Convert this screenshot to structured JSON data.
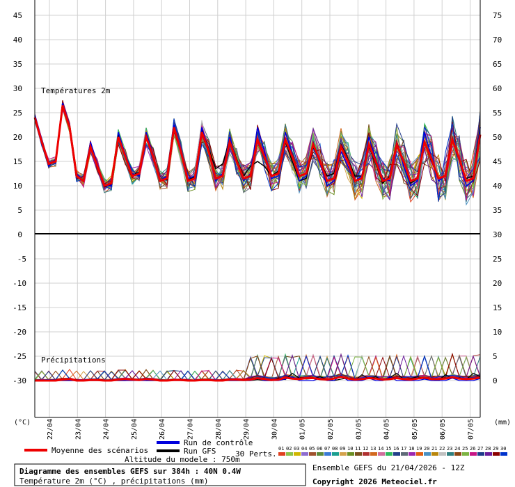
{
  "chart_data": {
    "type": "line",
    "dates": [
      "22/04",
      "23/04",
      "24/04",
      "25/04",
      "26/04",
      "27/04",
      "28/04",
      "29/04",
      "30/04",
      "01/05",
      "02/05",
      "03/05",
      "04/05",
      "05/05",
      "06/05",
      "07/05"
    ],
    "unit_left": "(°C)",
    "unit_right": "(mm)",
    "temperature": {
      "label": "Températures 2m",
      "left_ticks": [
        "45",
        "40",
        "35",
        "30",
        "25",
        "20",
        "15",
        "10",
        "5",
        "0"
      ],
      "right_ticks": [
        "75",
        "70",
        "65",
        "60",
        "55",
        "50",
        "45",
        "40",
        "35",
        "30"
      ],
      "ylim": [
        0,
        47
      ],
      "x_hours": [
        0,
        6,
        12,
        18,
        24,
        30,
        36,
        42,
        48,
        54,
        60,
        66,
        72,
        78,
        84,
        90,
        96,
        102,
        108,
        114,
        120,
        126,
        132,
        138,
        144,
        150,
        156,
        162,
        168,
        174,
        180,
        186,
        192,
        198,
        204,
        210,
        216,
        222,
        228,
        234,
        240,
        246,
        252,
        258,
        264,
        270,
        276,
        282,
        288,
        294,
        300,
        306,
        312,
        318,
        324,
        330,
        336,
        342,
        348,
        354,
        360,
        366,
        372,
        378,
        384
      ],
      "mean": [
        24,
        19,
        14.5,
        15,
        26.5,
        22,
        12,
        11,
        18,
        14,
        10,
        10.5,
        20,
        16,
        12,
        12.5,
        20,
        16,
        11,
        11.5,
        22,
        17,
        11,
        11.5,
        21,
        17,
        11.5,
        12,
        19,
        15,
        11.5,
        12,
        19.5,
        16,
        12,
        12.5,
        19.5,
        16,
        12,
        12.5,
        18.5,
        15,
        11,
        11.5,
        18,
        15,
        11,
        11.5,
        18.5,
        15,
        11,
        11.5,
        18.5,
        15,
        11,
        11.5,
        19,
        15.5,
        11.5,
        12,
        19.5,
        15.5,
        11,
        11.5,
        20.5
      ],
      "control": [
        24.5,
        19.5,
        14,
        15.5,
        27,
        22.5,
        12.5,
        11,
        19,
        14.5,
        10,
        10,
        21,
        16.5,
        12.5,
        12,
        21,
        16.5,
        11,
        12,
        22.5,
        17.5,
        11.5,
        12,
        22,
        17,
        11,
        12.5,
        20,
        15,
        11,
        12.5,
        22,
        17,
        11.5,
        12,
        21,
        16.5,
        11,
        12,
        19,
        14.5,
        10,
        11,
        17,
        14,
        11,
        12,
        20,
        15.5,
        11.5,
        11,
        19,
        14,
        10,
        11,
        21,
        16,
        11,
        12,
        20,
        15,
        10,
        11,
        22
      ],
      "gfs": [
        24.2,
        19.2,
        14.2,
        15.2,
        26.8,
        22.2,
        12.2,
        10.8,
        18.5,
        14.2,
        9.8,
        10.2,
        20.5,
        16.2,
        12.2,
        12.8,
        20.5,
        16.2,
        11.2,
        11.2,
        22.2,
        17.2,
        11.2,
        11.8,
        21.5,
        17.5,
        13.5,
        14.5,
        19.5,
        15.5,
        12,
        14,
        15,
        14,
        12,
        13,
        19,
        15,
        11,
        11.5,
        18,
        15,
        12,
        12.5,
        18.5,
        15.5,
        12,
        12,
        18,
        14.5,
        10.5,
        12,
        19,
        15,
        10.5,
        11.5,
        19,
        15,
        11.5,
        12,
        19.5,
        15,
        11.5,
        12,
        22
      ]
    },
    "precipitation": {
      "label": "Précipitations",
      "left_ticks": [
        "0",
        "-5",
        "-10",
        "-15",
        "-20",
        "-25",
        "-30"
      ],
      "right_ticks": [
        "30",
        "25",
        "20",
        "15",
        "10",
        "5",
        "0"
      ],
      "mean": [
        0,
        0,
        0,
        0,
        0.2,
        0.3,
        0,
        0,
        0.1,
        0.1,
        0,
        0,
        0.2,
        0.3,
        0.2,
        0.1,
        0.3,
        0.2,
        0,
        0,
        0.1,
        0.1,
        0,
        0,
        0.1,
        0.1,
        0,
        0,
        0.2,
        0.2,
        0.1,
        0.2,
        0.5,
        0.3,
        0.1,
        0.2,
        0.6,
        0.4,
        0.3,
        0.5,
        0.5,
        0.3,
        0.2,
        0.4,
        0.8,
        0.4,
        0.2,
        0.3,
        0.5,
        0.4,
        0.2,
        0.3,
        0.5,
        0.3,
        0.2,
        0.4,
        0.6,
        0.3,
        0.3,
        0.4,
        0.7,
        0.4,
        0.3,
        0.4,
        0.6
      ],
      "control": [
        0,
        0,
        0,
        0,
        0,
        0,
        0,
        0,
        0,
        0,
        0,
        0,
        0,
        0,
        0,
        0,
        0,
        0,
        0,
        0,
        0,
        0,
        0,
        0,
        0,
        0,
        0,
        0,
        0,
        0,
        0,
        0,
        0.5,
        0,
        0,
        0,
        0.3,
        0.8,
        0,
        0,
        0,
        0.5,
        0,
        0,
        1,
        0,
        0,
        0,
        0.5,
        0,
        0,
        0.8,
        0,
        0,
        0,
        0,
        0.3,
        0,
        0,
        0,
        0.5,
        0,
        0,
        0,
        0.4
      ],
      "gfs": [
        0,
        0,
        0,
        0,
        0,
        0,
        0,
        0,
        0,
        0,
        0,
        0,
        0,
        0,
        0.1,
        0.3,
        0,
        0,
        0,
        0,
        0.2,
        0,
        0,
        0,
        0,
        0,
        0,
        0,
        0,
        0,
        0,
        0,
        0.2,
        0,
        0,
        0.5,
        0.2,
        1.5,
        0.5,
        0.3,
        0.4,
        0.8,
        0.2,
        0,
        0.3,
        0.5,
        0,
        1.2,
        0.4,
        0.8,
        0,
        0.6,
        1.5,
        0.3,
        0.4,
        0.8,
        0.3,
        0.3,
        0,
        1.2,
        0.5,
        0.6,
        0.2,
        1.5,
        0.8
      ]
    },
    "member_colors": [
      "#e0401f",
      "#8bc34a",
      "#cfb700",
      "#8e6ccf",
      "#a0522d",
      "#5a8a3a",
      "#3a7bd5",
      "#1a9e8f",
      "#d4a24c",
      "#6b8e23",
      "#7a4f1d",
      "#b03030",
      "#d2691e",
      "#d06e9c",
      "#2eb85c",
      "#22408a",
      "#5f6b78",
      "#9c27b0",
      "#e05c10",
      "#4a90c2",
      "#b8860b",
      "#c0c0c0",
      "#2f7f7f",
      "#8b4513",
      "#7cb342",
      "#c71585",
      "#1e3a8a",
      "#6a1b9a",
      "#8b0000",
      "#0033cc"
    ]
  },
  "legend": {
    "mean_label": "Moyenne des scénarios",
    "control_label": "Run de contrôle",
    "gfs_label": "Run GFS",
    "altitude_label": "Altitude du modele : 750m",
    "perts_label": "30 Perts.",
    "pert_numbers": [
      "01",
      "02",
      "03",
      "04",
      "05",
      "06",
      "07",
      "08",
      "09",
      "10",
      "11",
      "12",
      "13",
      "14",
      "15",
      "16",
      "17",
      "18",
      "19",
      "20",
      "21",
      "22",
      "23",
      "24",
      "25",
      "26",
      "27",
      "28",
      "29",
      "30"
    ],
    "mean_color": "#ee0000",
    "control_color": "#0000dd",
    "gfs_color": "#000000"
  },
  "footer": {
    "title": "Diagramme des ensembles GEFS sur 384h : 40N 0.4W",
    "subtitle": "Température 2m (°C) , précipitations (mm)",
    "ensemble": "Ensemble GEFS du 21/04/2026 - 12Z",
    "copyright": "Copyright 2026 Meteociel.fr"
  }
}
